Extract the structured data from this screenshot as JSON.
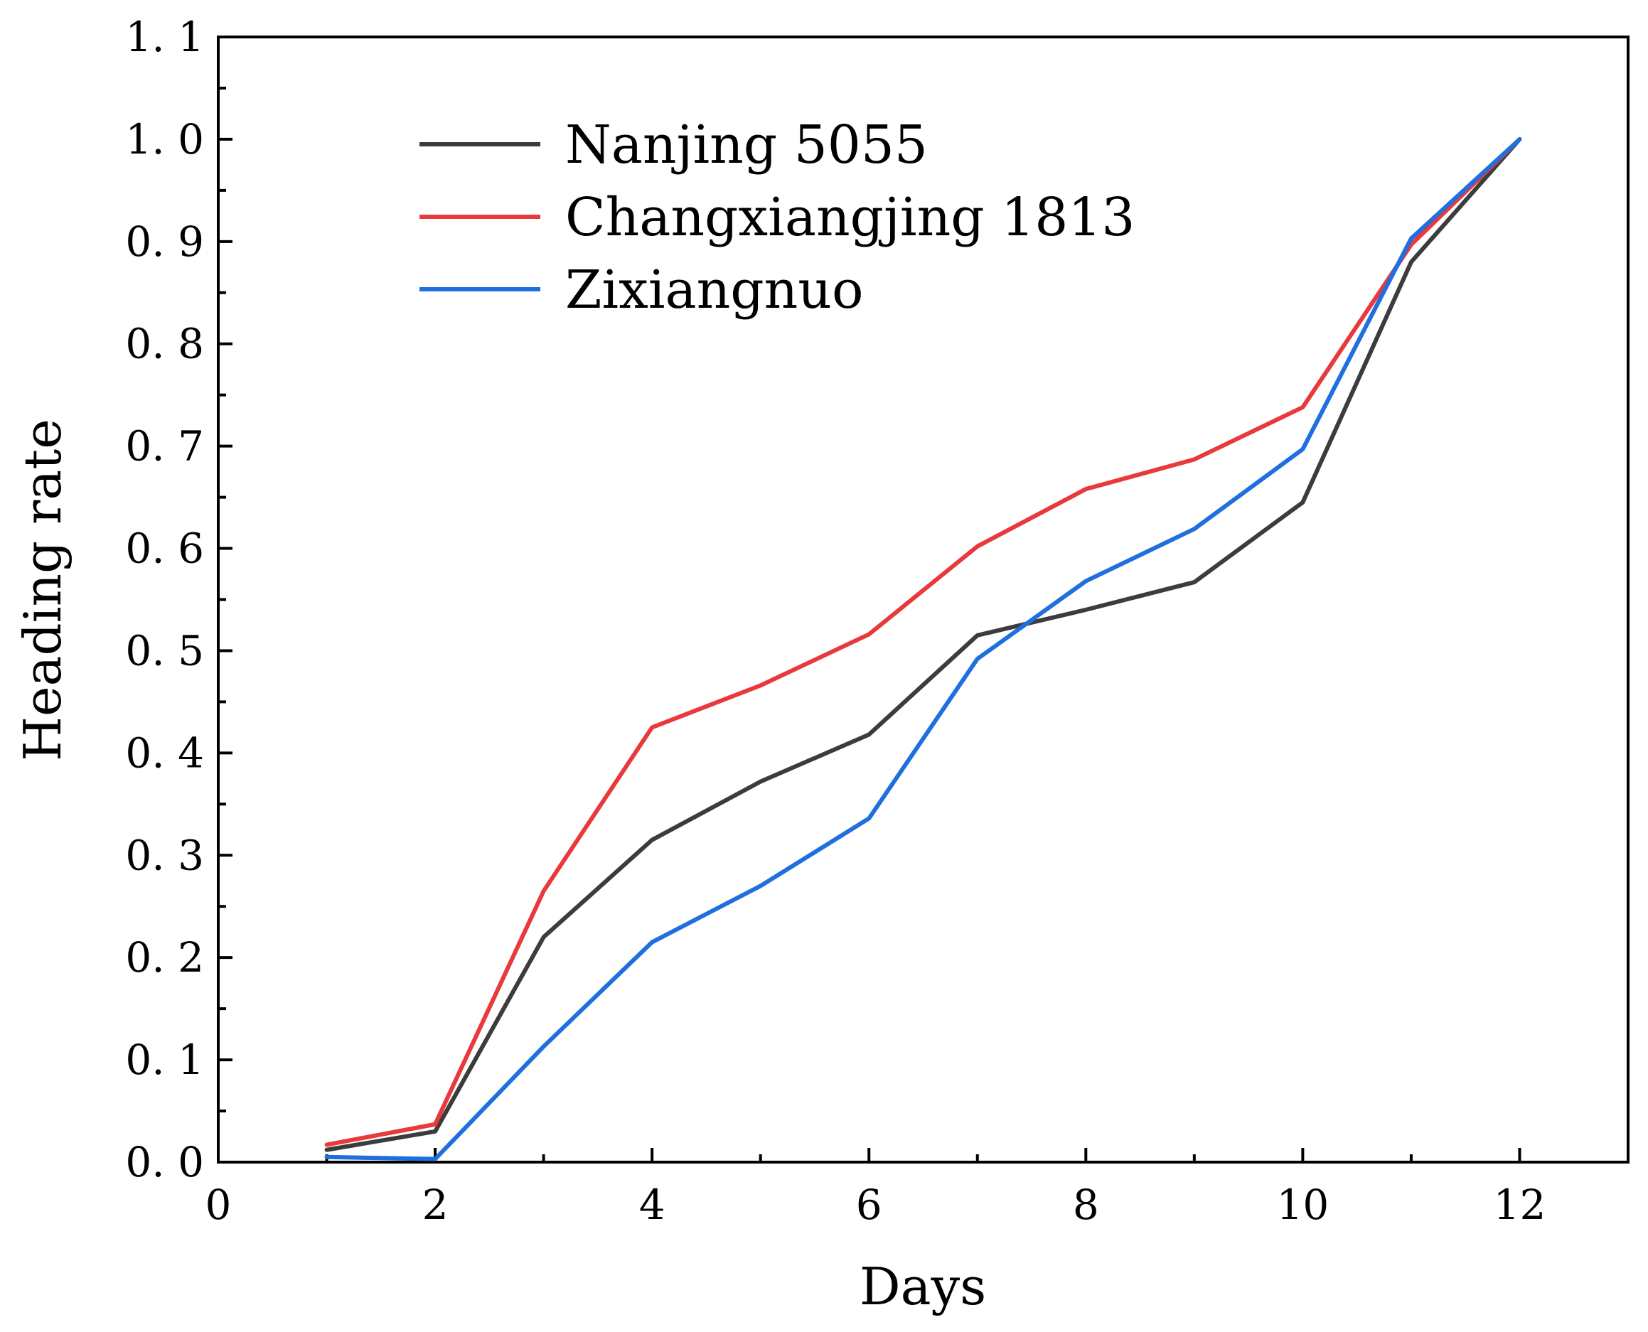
{
  "chart_data": {
    "type": "line",
    "title": "",
    "xlabel": "Days",
    "ylabel": "Heading rate",
    "xlim": [
      0,
      13
    ],
    "ylim": [
      0,
      1.1
    ],
    "x_major_ticks": [
      0,
      2,
      4,
      6,
      8,
      10,
      12
    ],
    "x_tick_labels": [
      "0",
      "2",
      "4",
      "6",
      "8",
      "10",
      "12"
    ],
    "y_major_ticks": [
      0,
      0.1,
      0.2,
      0.3,
      0.4,
      0.5,
      0.6,
      0.7,
      0.8,
      0.9,
      1.0,
      1.1
    ],
    "y_tick_labels": [
      "0. 0",
      "0. 1",
      "0. 2",
      "0. 3",
      "0. 4",
      "0. 5",
      "0. 6",
      "0. 7",
      "0. 8",
      "0. 9",
      "1. 0",
      "1. 1"
    ],
    "grid": false,
    "legend_position": "top-left",
    "x": [
      1,
      2,
      3,
      4,
      5,
      6,
      7,
      8,
      9,
      10,
      11,
      12
    ],
    "series": [
      {
        "name": "Nanjing 5055",
        "color": "#3c3c3c",
        "values": [
          0.012,
          0.03,
          0.22,
          0.315,
          0.372,
          0.418,
          0.515,
          0.54,
          0.567,
          0.645,
          0.88,
          1.0
        ]
      },
      {
        "name": "Changxiangjing 1813",
        "color": "#e8393c",
        "values": [
          0.017,
          0.037,
          0.265,
          0.425,
          0.466,
          0.516,
          0.602,
          0.658,
          0.687,
          0.738,
          0.897,
          1.0
        ]
      },
      {
        "name": "Zixiangnuo",
        "color": "#1f6fde",
        "values": [
          0.005,
          0.003,
          0.113,
          0.215,
          0.27,
          0.336,
          0.492,
          0.568,
          0.619,
          0.697,
          0.903,
          1.0
        ]
      }
    ]
  }
}
